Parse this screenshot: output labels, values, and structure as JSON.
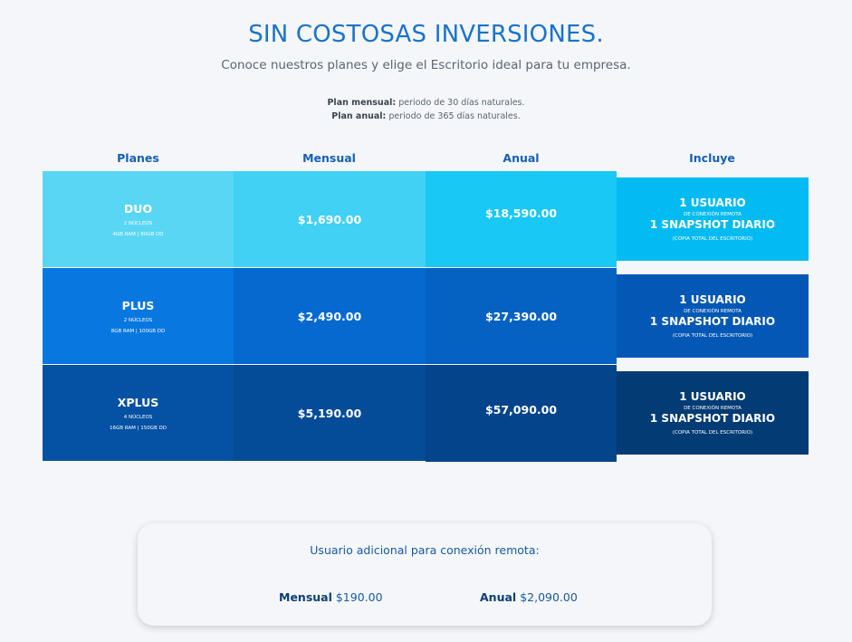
{
  "header": {
    "title": "SIN COSTOSAS INVERSIONES.",
    "subtitle": "Conoce nuestros planes y elige el Escritorio ideal para tu empresa.",
    "note_monthly_label": "Plan mensual:",
    "note_monthly_text": " periodo de 30 días naturales.",
    "note_annual_label": "Plan anual:",
    "note_annual_text": " periodo de 365 días naturales."
  },
  "table": {
    "headers": [
      "Planes",
      "Mensual",
      "Anual",
      "Incluye"
    ],
    "plans": [
      {
        "name": "DUO",
        "cores": "2 NÚCLEOS",
        "spec": "4GB RAM | 80GB DD",
        "monthly": "$1,690.00",
        "annual": "$18,590.00",
        "includes": [
          "1 USUARIO",
          "DE CONEXIÓN REMOTA",
          "1 SNAPSHOT DIARIO",
          "(COPIA TOTAL DEL ESCRITORIO)"
        ]
      },
      {
        "name": "PLUS",
        "cores": "2 NÚCLEOS",
        "spec": "8GB RAM | 100GB DD",
        "monthly": "$2,490.00",
        "annual": "$27,390.00",
        "includes": [
          "1 USUARIO",
          "DE CONEXIÓN REMOTA",
          "1 SNAPSHOT DIARIO",
          "(COPIA TOTAL DEL ESCRITORIO)"
        ]
      },
      {
        "name": "XPLUS",
        "cores": "4 NÚCLEOS",
        "spec": "16GB RAM | 150GB DD",
        "monthly": "$5,190.00",
        "annual": "$57,090.00",
        "includes": [
          "1 USUARIO",
          "DE CONEXIÓN REMOTA",
          "1 SNAPSHOT DIARIO",
          "(COPIA TOTAL DEL ESCRITORIO)"
        ]
      }
    ]
  },
  "extra": {
    "title": "Usuario adicional para conexión remota:",
    "monthly_label": "Mensual",
    "monthly_price": "$190.00",
    "annual_label": "Anual",
    "annual_price": "$2,090.00"
  },
  "colors": {
    "duo": [
      "#5ad6f5",
      "#41d1f4",
      "#19c8f5",
      "#04bbf1"
    ],
    "plus": [
      "#0977e0",
      "#0569d0",
      "#0562c3",
      "#0458b5"
    ],
    "xplus": [
      "#0551a3",
      "#044c98",
      "#03448a",
      "#033b75"
    ]
  }
}
